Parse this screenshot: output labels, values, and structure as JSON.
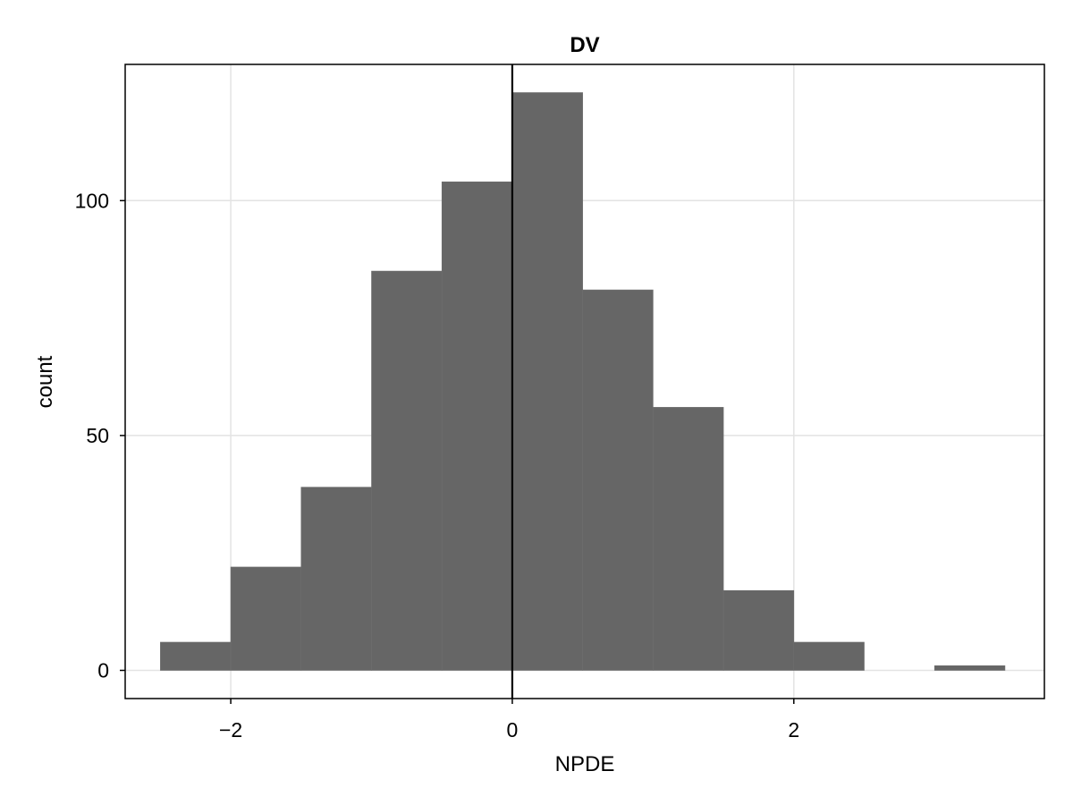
{
  "chart_data": {
    "type": "bar",
    "title": "DV",
    "xlabel": "NPDE",
    "ylabel": "count",
    "xlim": [
      -2.75,
      3.78
    ],
    "ylim": [
      -6,
      129
    ],
    "xticks": [
      -2,
      0,
      2
    ],
    "xtick_labels": [
      "−2",
      "0",
      "2"
    ],
    "yticks": [
      0,
      50,
      100
    ],
    "ytick_labels": [
      "0",
      "50",
      "100"
    ],
    "grid": true,
    "bin_width": 0.5,
    "bins": [
      {
        "x0": -2.5,
        "x1": -2.0,
        "count": 6
      },
      {
        "x0": -2.0,
        "x1": -1.5,
        "count": 22
      },
      {
        "x0": -1.5,
        "x1": -1.0,
        "count": 39
      },
      {
        "x0": -1.0,
        "x1": -0.5,
        "count": 85
      },
      {
        "x0": -0.5,
        "x1": 0.0,
        "count": 104
      },
      {
        "x0": 0.0,
        "x1": 0.5,
        "count": 123
      },
      {
        "x0": 0.5,
        "x1": 1.0,
        "count": 81
      },
      {
        "x0": 1.0,
        "x1": 1.5,
        "count": 56
      },
      {
        "x0": 1.5,
        "x1": 2.0,
        "count": 17
      },
      {
        "x0": 2.0,
        "x1": 2.5,
        "count": 6
      },
      {
        "x0": 2.5,
        "x1": 3.0,
        "count": 0
      },
      {
        "x0": 3.0,
        "x1": 3.5,
        "count": 1
      }
    ],
    "reference_line_x": 0,
    "bar_color": "#666666",
    "reference_line_color": "#000000",
    "grid_color": "#e3e3e3"
  }
}
